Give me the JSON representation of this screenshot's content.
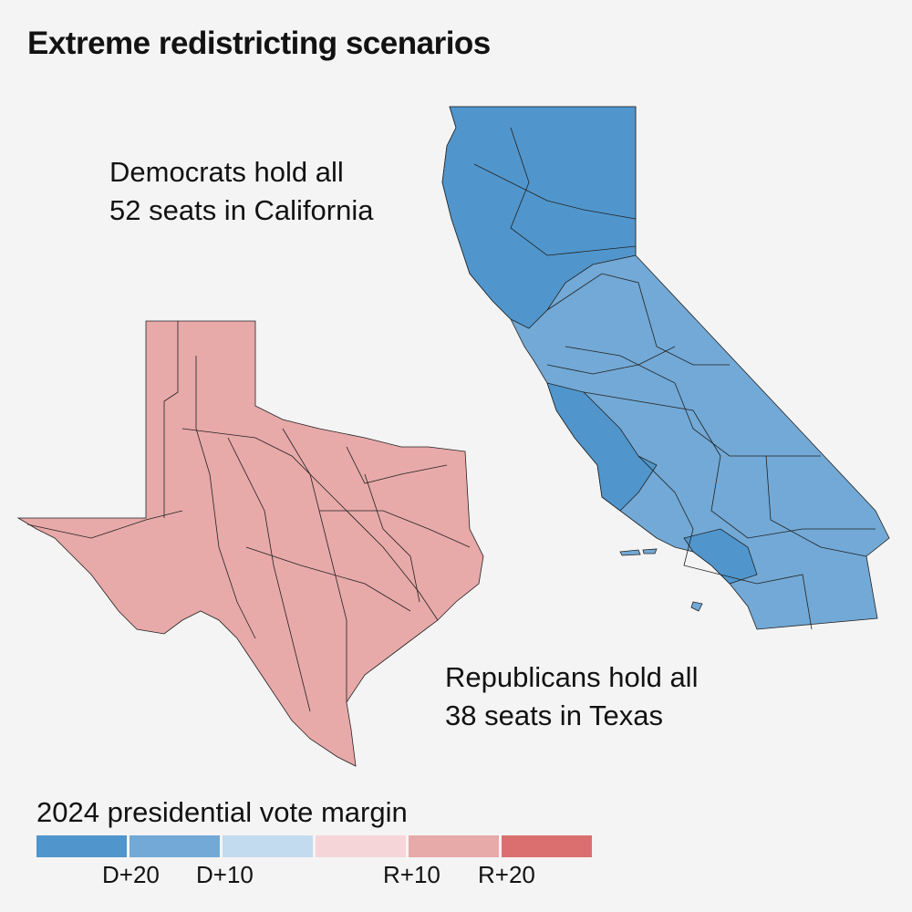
{
  "title": "Extreme redistricting scenarios",
  "annotations": {
    "california": [
      "Democrats hold all",
      "52 seats in California"
    ],
    "texas": [
      "Republicans hold all",
      "38 seats in Texas"
    ]
  },
  "legend": {
    "title": "2024 presidential vote margin",
    "colors": [
      "#5096cc",
      "#72a9d6",
      "#c2dbee",
      "#f5d5d8",
      "#e8a9a9",
      "#db6f6f"
    ],
    "ticks": [
      "D+20",
      "D+10",
      "R+10",
      "R+20"
    ]
  },
  "states": {
    "california": {
      "name": "California",
      "seats": 52,
      "fills": [
        "#5096cc",
        "#72a9d6"
      ]
    },
    "texas": {
      "name": "Texas",
      "seats": 38,
      "fill": "#e8a9a9"
    }
  }
}
